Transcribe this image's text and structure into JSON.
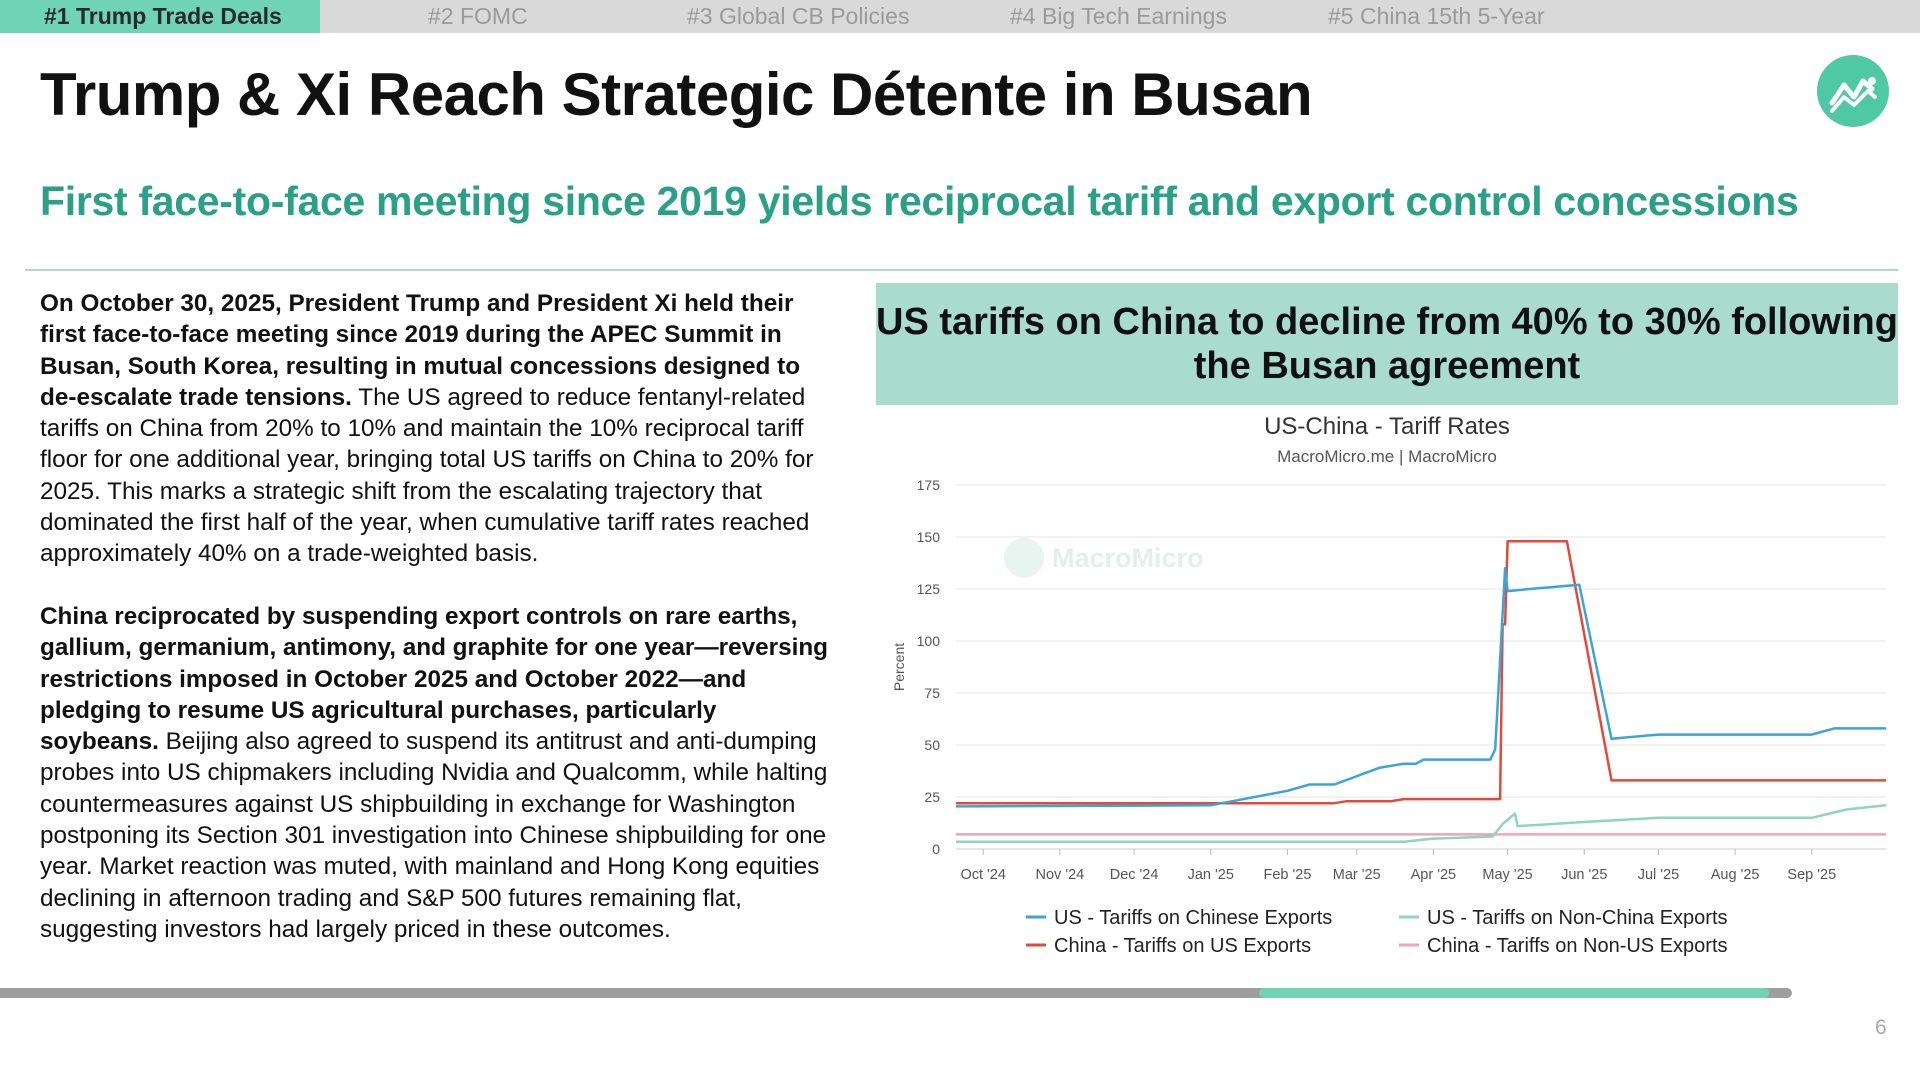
{
  "tabs": [
    {
      "label": "#1 Trump Trade Deals",
      "active": true
    },
    {
      "label": "#2 FOMC",
      "active": false
    },
    {
      "label": "#3 Global CB Policies",
      "active": false
    },
    {
      "label": "#4 Big Tech Earnings",
      "active": false
    },
    {
      "label": "#5 China 15th 5-Year",
      "active": false
    }
  ],
  "slide": {
    "title": "Trump & Xi Reach Strategic Détente in Busan",
    "subtitle": "First face-to-face meeting since 2019 yields reciprocal tariff and export control concessions",
    "logo_icon": "trend-chart-icon",
    "page_number": "6",
    "progress": 0.82,
    "colors": {
      "accent": "#6fd4b4",
      "subtitle": "#2aa086",
      "header_bg": "#a9dccd",
      "logo": "#4ec9a4"
    }
  },
  "body": {
    "p1_bold": "On October 30, 2025, President Trump and President Xi held their first face-to-face meeting since 2019 during the APEC Summit in Busan, South Korea, resulting in mutual concessions designed to de-escalate trade tensions.",
    "p1_rest": " The US agreed to reduce fentanyl-related tariffs on China from 20% to 10% and maintain the 10% reciprocal tariff floor for one additional year, bringing total US tariffs on China to 20% for 2025. This marks a strategic shift from the escalating trajectory that dominated the first half of the year, when cumulative tariff rates reached approximately 40% on a trade-weighted basis.",
    "p2_bold": "China reciprocated by suspending export controls on rare earths, gallium, germanium, antimony, and graphite for one year—reversing restrictions imposed in October 2025 and October 2022—and pledging to resume US agricultural purchases, particularly soybeans.",
    "p2_rest": " Beijing also agreed to suspend its antitrust and anti-dumping probes into US chipmakers including Nvidia and Qualcomm, while halting countermeasures against US shipbuilding in exchange for Washington postponing its Section 301 investigation into Chinese shipbuilding for one year. Market reaction was muted, with mainland and Hong Kong equities declining in afternoon trading and S&P 500 futures remaining flat, suggesting investors had largely priced in these outcomes."
  },
  "chart_header": "US tariffs on China to decline from 40% to 30% following the Busan agreement",
  "chart_data": {
    "type": "line",
    "title": "US-China - Tariff Rates",
    "subtitle": "MacroMicro.me | MacroMicro",
    "watermark": "MacroMicro",
    "ylabel": "Percent",
    "xlabel": "",
    "ylim": [
      0,
      175
    ],
    "yticks": [
      0,
      25,
      50,
      75,
      100,
      125,
      150,
      175
    ],
    "xlim": [
      "2024-09-20",
      "2025-10-01"
    ],
    "xticks": [
      {
        "date": "2024-10-01",
        "label": "Oct '24"
      },
      {
        "date": "2024-11-01",
        "label": "Nov '24"
      },
      {
        "date": "2024-12-01",
        "label": "Dec '24"
      },
      {
        "date": "2025-01-01",
        "label": "Jan '25"
      },
      {
        "date": "2025-02-01",
        "label": "Feb '25"
      },
      {
        "date": "2025-03-01",
        "label": "Mar '25"
      },
      {
        "date": "2025-04-01",
        "label": "Apr '25"
      },
      {
        "date": "2025-05-01",
        "label": "May '25"
      },
      {
        "date": "2025-06-01",
        "label": "Jun '25"
      },
      {
        "date": "2025-07-01",
        "label": "Jul '25"
      },
      {
        "date": "2025-08-01",
        "label": "Aug '25"
      },
      {
        "date": "2025-09-01",
        "label": "Sep '25"
      }
    ],
    "grid": true,
    "legend_position": "bottom",
    "series": [
      {
        "name": "US - Tariffs on Chinese Exports",
        "color": "#3aa5d6",
        "points": [
          [
            "2024-09-20",
            20.5
          ],
          [
            "2025-01-01",
            21
          ],
          [
            "2025-02-01",
            28
          ],
          [
            "2025-02-10",
            31
          ],
          [
            "2025-02-20",
            31
          ],
          [
            "2025-03-10",
            39
          ],
          [
            "2025-03-20",
            41
          ],
          [
            "2025-03-25",
            41
          ],
          [
            "2025-03-28",
            43
          ],
          [
            "2025-04-24",
            43
          ],
          [
            "2025-04-26",
            48
          ],
          [
            "2025-04-30",
            135
          ],
          [
            "2025-05-01",
            124
          ],
          [
            "2025-05-10",
            125
          ],
          [
            "2025-05-20",
            126
          ],
          [
            "2025-05-30",
            127
          ],
          [
            "2025-06-12",
            53
          ],
          [
            "2025-07-01",
            55
          ],
          [
            "2025-08-01",
            55
          ],
          [
            "2025-09-01",
            55
          ],
          [
            "2025-09-10",
            58
          ],
          [
            "2025-10-01",
            58
          ]
        ]
      },
      {
        "name": "China - Tariffs on US Exports",
        "color": "#e04b3a",
        "points": [
          [
            "2024-09-20",
            22
          ],
          [
            "2025-02-20",
            22
          ],
          [
            "2025-02-25",
            23
          ],
          [
            "2025-03-15",
            23
          ],
          [
            "2025-03-20",
            24
          ],
          [
            "2025-04-28",
            24
          ],
          [
            "2025-04-29",
            108
          ],
          [
            "2025-04-30",
            108
          ],
          [
            "2025-05-01",
            148
          ],
          [
            "2025-05-25",
            148
          ],
          [
            "2025-06-12",
            33
          ],
          [
            "2025-10-01",
            33
          ]
        ]
      },
      {
        "name": "US - Tariffs on Non-China Exports",
        "color": "#8fd4bf",
        "points": [
          [
            "2024-09-20",
            3.5
          ],
          [
            "2025-03-20",
            3.5
          ],
          [
            "2025-04-01",
            5
          ],
          [
            "2025-04-25",
            6
          ],
          [
            "2025-04-29",
            12
          ],
          [
            "2025-05-04",
            17
          ],
          [
            "2025-05-05",
            11
          ],
          [
            "2025-06-01",
            13
          ],
          [
            "2025-07-01",
            15
          ],
          [
            "2025-08-01",
            15
          ],
          [
            "2025-09-01",
            15
          ],
          [
            "2025-09-15",
            19
          ],
          [
            "2025-10-01",
            21
          ]
        ]
      },
      {
        "name": "China - Tariffs on Non-US Exports",
        "color": "#f2a3b3",
        "points": [
          [
            "2024-09-20",
            7
          ],
          [
            "2025-10-01",
            7
          ]
        ]
      }
    ]
  }
}
